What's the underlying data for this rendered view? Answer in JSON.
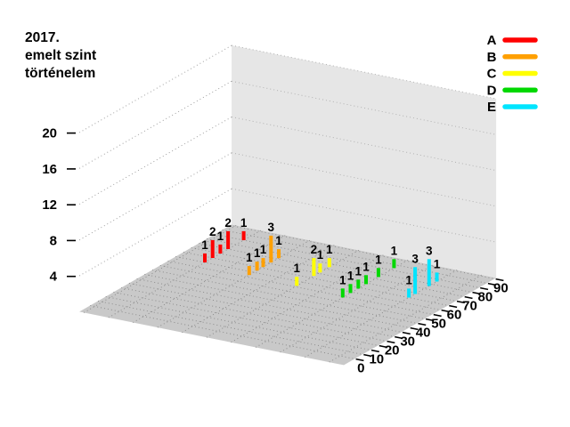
{
  "title": {
    "lines": [
      "2017.",
      "emelt szint",
      "történelem"
    ]
  },
  "chart_data": {
    "type": "bar",
    "subtype": "bar3d-impulse",
    "title": "2017. emelt szint történelem",
    "xlabel": "",
    "ylabel": "",
    "zlabel": "",
    "x_axis": {
      "tick_labels": [
        0,
        10,
        20,
        30,
        40,
        50,
        60,
        70,
        80,
        90
      ],
      "minor_tick_step": 5,
      "range": [
        -7,
        91
      ]
    },
    "z_axis": {
      "tick_labels": [
        4,
        8,
        12,
        16,
        20
      ],
      "range": [
        0,
        20
      ]
    },
    "grid": true,
    "legend_position": "top-right",
    "series": [
      {
        "name": "A",
        "color": "#ff0000",
        "points": [
          {
            "x": 55,
            "count": 1
          },
          {
            "x": 60,
            "count": 2
          },
          {
            "x": 65,
            "count": 1
          },
          {
            "x": 70,
            "count": 2
          },
          {
            "x": 80,
            "count": 1
          }
        ]
      },
      {
        "name": "B",
        "color": "#ffa000",
        "points": [
          {
            "x": 52,
            "count": 1
          },
          {
            "x": 57,
            "count": 1
          },
          {
            "x": 61,
            "count": 1
          },
          {
            "x": 66,
            "count": 3
          },
          {
            "x": 71,
            "count": 1
          }
        ]
      },
      {
        "name": "C",
        "color": "#ffff00",
        "points": [
          {
            "x": 51,
            "count": 1
          },
          {
            "x": 62,
            "count": 2
          },
          {
            "x": 66,
            "count": 1
          },
          {
            "x": 72,
            "count": 1
          }
        ]
      },
      {
        "name": "D",
        "color": "#00d800",
        "points": [
          {
            "x": 49,
            "count": 1
          },
          {
            "x": 54,
            "count": 1
          },
          {
            "x": 59,
            "count": 1
          },
          {
            "x": 64,
            "count": 1
          },
          {
            "x": 72,
            "count": 1
          },
          {
            "x": 82,
            "count": 1
          }
        ]
      },
      {
        "name": "E",
        "color": "#00e5ff",
        "points": [
          {
            "x": 60,
            "count": 1
          },
          {
            "x": 64,
            "count": 3
          },
          {
            "x": 73,
            "count": 3
          },
          {
            "x": 78,
            "count": 1
          }
        ]
      }
    ],
    "colors": {
      "floor": "#c9c9c9",
      "wall": "#e6e6e6",
      "grid_floor": "#8c8c8c",
      "grid_wall": "#b2b2b2",
      "grid_side": "#a0a0a0",
      "text": "#000000"
    }
  }
}
